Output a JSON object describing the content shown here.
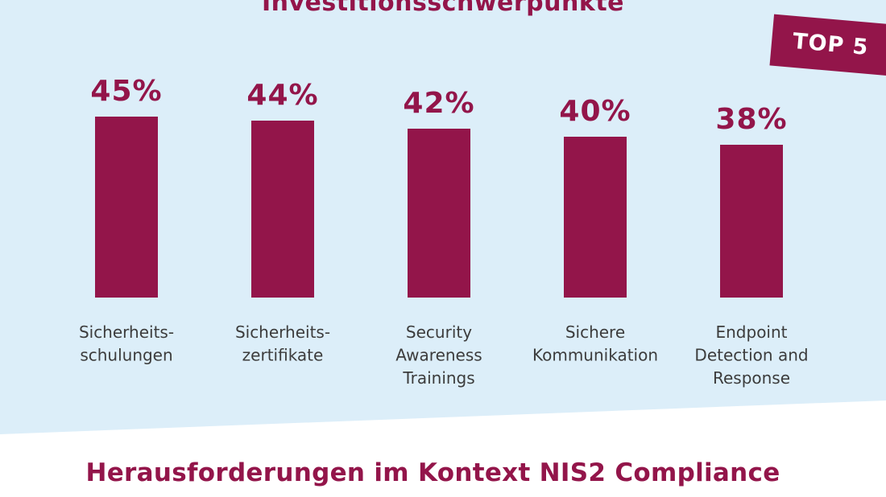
{
  "top_title": "Investitionsschwerpunkte",
  "badge": "TOP 5",
  "bottom_title": "Herausforderungen im Kontext NIS2 Compliance",
  "colors": {
    "bar": "#93154a",
    "panel": "#dceef9",
    "text": "#3c3c3c"
  },
  "chart_data": {
    "type": "bar",
    "categories": [
      [
        "Sicherheits-",
        "schulungen"
      ],
      [
        "Sicherheits-",
        "zertifikate"
      ],
      [
        "Security",
        "Awareness",
        "Trainings"
      ],
      [
        "Sichere",
        "Kommunikation"
      ],
      [
        "Endpoint",
        "Detection and",
        "Response"
      ]
    ],
    "values": [
      45,
      44,
      42,
      40,
      38
    ],
    "value_labels": [
      "45%",
      "44%",
      "42%",
      "40%",
      "38%"
    ],
    "unit": "%",
    "title": "Investitionsschwerpunkte",
    "grid": false
  }
}
